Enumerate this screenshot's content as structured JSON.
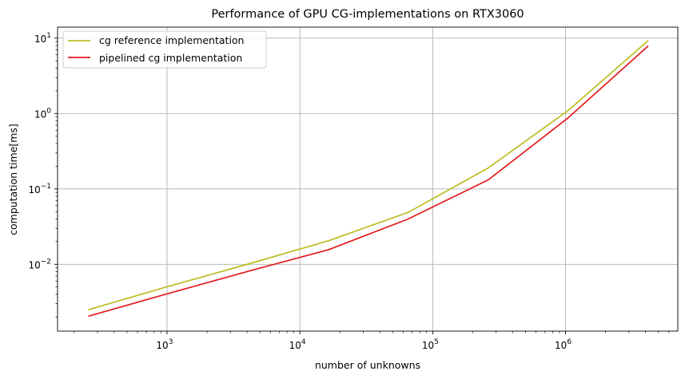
{
  "chart_data": {
    "type": "line",
    "title": "Performance of GPU CG-implementations on RTX3060",
    "xlabel": "number of unknowns",
    "ylabel": "computation time[ms]",
    "xscale": "log",
    "yscale": "log",
    "xlim": [
      150,
      7000000
    ],
    "ylim": [
      0.0013,
      14
    ],
    "grid": true,
    "legend_position": "top-left",
    "x_ticks": [
      {
        "value": 1000,
        "base": "10",
        "exp": "3"
      },
      {
        "value": 10000,
        "base": "10",
        "exp": "4"
      },
      {
        "value": 100000,
        "base": "10",
        "exp": "5"
      },
      {
        "value": 1000000,
        "base": "10",
        "exp": "6"
      }
    ],
    "y_ticks": [
      {
        "value": 0.01,
        "base": "10",
        "exp": "−2"
      },
      {
        "value": 0.1,
        "base": "10",
        "exp": "−1"
      },
      {
        "value": 1,
        "base": "10",
        "exp": "0"
      },
      {
        "value": 10,
        "base": "10",
        "exp": "1"
      }
    ],
    "x": [
      256,
      1024,
      4096,
      16384,
      65536,
      262144,
      1048576,
      4194304
    ],
    "series": [
      {
        "name": "cg reference implementation",
        "color": "#bcbd22",
        "values": [
          0.0025,
          0.0051,
          0.0101,
          0.0205,
          0.049,
          0.19,
          1.1,
          9.3
        ]
      },
      {
        "name": "pipelined cg implementation",
        "color": "#e31a1c",
        "values": [
          0.00205,
          0.0041,
          0.0081,
          0.0156,
          0.04,
          0.132,
          0.88,
          7.9
        ]
      }
    ]
  }
}
